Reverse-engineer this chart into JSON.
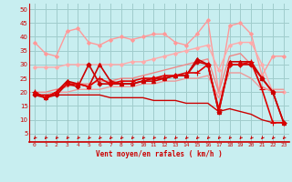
{
  "x": [
    0,
    1,
    2,
    3,
    4,
    5,
    6,
    7,
    8,
    9,
    10,
    11,
    12,
    13,
    14,
    15,
    16,
    17,
    18,
    19,
    20,
    21,
    22,
    23
  ],
  "bg_color": "#c8eef0",
  "grid_color": "#a0cccc",
  "line_color_dark": "#cc0000",
  "xlabel": "Vent moyen/en rafales ( km/h )",
  "yticks": [
    5,
    10,
    15,
    20,
    25,
    30,
    35,
    40,
    45,
    50
  ],
  "xlim": [
    -0.5,
    23.5
  ],
  "ylim": [
    2,
    52
  ],
  "series": [
    {
      "y": [
        38,
        34,
        33,
        42,
        43,
        38,
        37,
        39,
        40,
        39,
        40,
        41,
        41,
        38,
        37,
        41,
        46,
        20,
        44,
        45,
        41,
        26,
        33,
        33
      ],
      "color": "#ff9999",
      "lw": 1.0,
      "marker": "D",
      "ms": 2.0,
      "zorder": 2
    },
    {
      "y": [
        29,
        29,
        29,
        30,
        30,
        30,
        30,
        30,
        30,
        31,
        31,
        32,
        33,
        34,
        35,
        36,
        37,
        28,
        37,
        38,
        38,
        30,
        20,
        20
      ],
      "color": "#ffaaaa",
      "lw": 1.0,
      "marker": "D",
      "ms": 2.0,
      "zorder": 2
    },
    {
      "y": [
        20,
        20,
        21,
        22,
        23,
        23,
        24,
        24,
        25,
        25,
        26,
        27,
        28,
        29,
        30,
        31,
        32,
        20,
        33,
        34,
        30,
        22,
        20,
        20
      ],
      "color": "#ee8888",
      "lw": 1.0,
      "marker": null,
      "ms": 0,
      "zorder": 2
    },
    {
      "y": [
        19,
        19,
        20,
        20,
        21,
        21,
        21,
        22,
        22,
        22,
        23,
        23,
        24,
        24,
        25,
        25,
        26,
        18,
        27,
        27,
        25,
        21,
        21,
        21
      ],
      "color": "#ee9999",
      "lw": 1.0,
      "marker": null,
      "ms": 0,
      "zorder": 2
    },
    {
      "y": [
        19,
        18,
        19,
        23,
        22,
        30,
        23,
        23,
        23,
        23,
        24,
        25,
        25,
        26,
        26,
        31,
        30,
        13,
        30,
        30,
        30,
        25,
        20,
        9
      ],
      "color": "#cc0000",
      "lw": 1.2,
      "marker": "D",
      "ms": 2.5,
      "zorder": 5
    },
    {
      "y": [
        20,
        18,
        20,
        24,
        23,
        22,
        30,
        24,
        23,
        23,
        24,
        24,
        25,
        26,
        26,
        32,
        30,
        13,
        31,
        31,
        31,
        25,
        20,
        9
      ],
      "color": "#cc0000",
      "lw": 1.2,
      "marker": "^",
      "ms": 3.0,
      "zorder": 5
    },
    {
      "y": [
        20,
        18,
        20,
        23,
        23,
        22,
        25,
        23,
        24,
        24,
        25,
        25,
        26,
        26,
        27,
        27,
        30,
        14,
        30,
        30,
        31,
        21,
        9,
        9
      ],
      "color": "#dd0000",
      "lw": 1.2,
      "marker": "+",
      "ms": 4.0,
      "zorder": 5
    },
    {
      "y": [
        19,
        19,
        19,
        19,
        19,
        19,
        19,
        18,
        18,
        18,
        18,
        17,
        17,
        17,
        16,
        16,
        16,
        13,
        14,
        13,
        12,
        10,
        9,
        9
      ],
      "color": "#cc0000",
      "lw": 1.0,
      "marker": null,
      "ms": 0,
      "zorder": 3
    }
  ]
}
